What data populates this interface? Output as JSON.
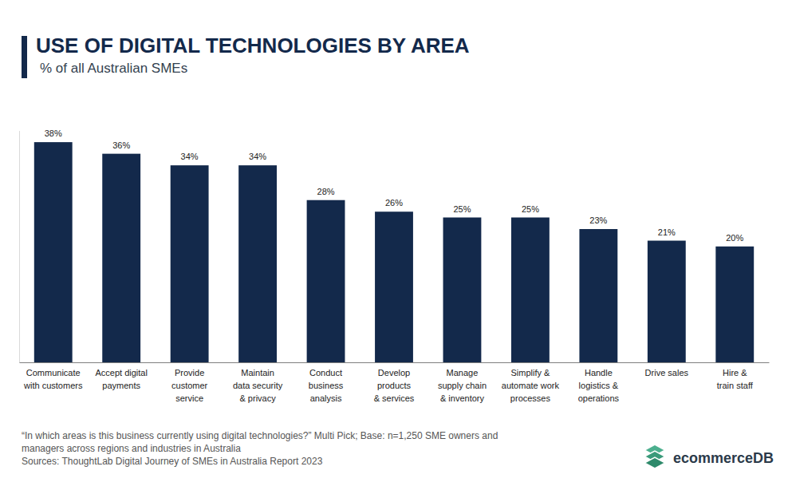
{
  "chart_data": {
    "type": "bar",
    "title": "USE OF DIGITAL TECHNOLOGIES BY AREA",
    "subtitle": "% of all Australian SMEs",
    "categories": [
      "Communicate\nwith customers",
      "Accept digital\npayments",
      "Provide\ncustomer\nservice",
      "Maintain\ndata security\n& privacy",
      "Conduct\nbusiness\nanalysis",
      "Develop\nproducts\n& services",
      "Manage\nsupply chain\n& inventory",
      "Simplify &\nautomate work\nprocesses",
      "Handle\nlogistics &\noperations",
      "Drive sales",
      "Hire &\ntrain staff"
    ],
    "values": [
      38,
      36,
      34,
      34,
      28,
      26,
      25,
      25,
      23,
      21,
      20
    ],
    "value_labels": [
      "38%",
      "36%",
      "34%",
      "34%",
      "28%",
      "26%",
      "25%",
      "25%",
      "23%",
      "21%",
      "20%"
    ],
    "color": "#13294b",
    "ylim": [
      0,
      40
    ],
    "yticks": [],
    "grid": false,
    "data_labels": true,
    "tick_labels": "x",
    "annotations": [
      "“In which areas is this business currently using digital technologies?” Multi Pick; Base: n=1,250  SME owners and\nmanagers across regions and industries in Australia",
      "Sources: ThoughtLab Digital Journey of SMEs in Australia Report 2023",
      "ecommerceDB"
    ]
  }
}
